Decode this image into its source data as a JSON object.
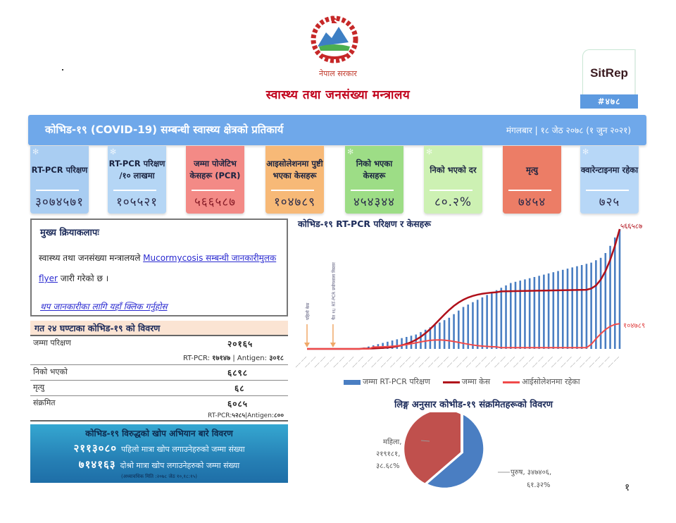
{
  "header": {
    "government": "नेपाल सरकार",
    "ministry": "स्वास्थ्य तथा जनसंख्या मन्त्रालय",
    "sitrep_title": "SitRep",
    "sitrep_number": "#४७८"
  },
  "banner": {
    "title": "कोभिड-१९ (COVID-19) सम्बन्धी स्वास्थ्य क्षेत्रको प्रतिकार्य",
    "date": "मंगलबार | १८ जेठ २०७८ (१ जुन २०२१)"
  },
  "cards": [
    {
      "label": "RT-PCR परिक्षण",
      "value": "३०७४५७१",
      "color": "#a9cdf2"
    },
    {
      "label": "RT-PCR परिक्षण /१० लाखमा",
      "value": "१०५५२१",
      "color": "#b5d6f5"
    },
    {
      "label": "जम्मा पोजेटिभ केसहरू (PCR)",
      "value": "५६६५८७",
      "color": "#f38a86"
    },
    {
      "label": "आइसोलेशनमा पुष्टी भएका केसहरू",
      "value": "१०४७८९",
      "color": "#f7b977"
    },
    {
      "label": "निको भएका केसहरू",
      "value": "४५४३४४",
      "color": "#9ddd86"
    },
    {
      "label": "निको भएको दर",
      "value": "८०.२%",
      "color": "#cdf1b3"
    },
    {
      "label": "मृत्यु",
      "value": "७४५४",
      "color": "#ec7d66"
    },
    {
      "label": "क्वारेन्टाइनमा रहेका",
      "value": "७२५",
      "color": "#b7d7f7"
    }
  ],
  "activities": {
    "title": "मुख्य क्रियाकलापः",
    "text_before": "स्वास्थ्य तथा जनसंख्या मन्त्रालयले ",
    "link_text": "Mucormycosis सम्बन्धी जानकारीमुलक flyer",
    "text_after": " जारी गरेको छ ।",
    "more_link": "थप जानकारीका लागि यहाँ क्लिक गर्नुहोस"
  },
  "last24": {
    "title": "गत २४ घण्टाका कोभिड-१९ को विवरण",
    "rows": [
      {
        "label": "जम्मा परिक्षण",
        "value": "२०१६५",
        "sub_rtpcr_label": "RT-PCR:",
        "sub_rtpcr": "१७१४७",
        "sub_antigen_label": "| Antigen:",
        "sub_antigen": "३०१८"
      },
      {
        "label": "निको भएको",
        "value": "६८९८"
      },
      {
        "label": "मृत्यु",
        "value": "६८"
      },
      {
        "label": "संक्रमित",
        "value": "६०८५",
        "sub_rtpcr_label": "RT-PCR:",
        "sub_rtpcr": "५२८५",
        "sub_antigen_label": "|Antigen:",
        "sub_antigen": "८००"
      }
    ]
  },
  "vaccine": {
    "title": "कोभिड-१९ विरुद्धको खोप अभियान बारे विवरण",
    "first_dose_value": "२११३०८०",
    "first_dose_label": "पहिलो मात्रा खोप लगाउनेहरुको जम्मा संख्या",
    "second_dose_value": "७१४१६३",
    "second_dose_label": "दोश्रो मात्रा खोप लगाउनेहरुको जम्मा संख्या",
    "note": "(अध्यावधिक मिति :२०७८ जेठ १०,१८:१५)"
  },
  "chart_data": [
    {
      "type": "bar+line",
      "title": "कोभिड-१९ RT-PCR परिक्षण र केसहरू",
      "annotations": [
        "पहिलो केस",
        "चैत १६: RT-PCR प्रयोगशाला विस्तार"
      ],
      "end_labels": {
        "total_cases": "५६६५८७",
        "isolation": "१०४७८९"
      },
      "legend": [
        "जम्मा RT-PCR परिक्षण",
        "जम्मा केस",
        "आईसोलेशनमा रहेका"
      ],
      "series": [
        {
          "name": "जम्मा RT-PCR परिक्षण",
          "type": "bar",
          "color": "#4a7ec2",
          "relative_values": [
            0,
            0,
            0,
            0,
            0,
            0,
            0,
            0,
            0,
            0,
            0,
            0,
            0.01,
            0.02,
            0.03,
            0.04,
            0.05,
            0.06,
            0.07,
            0.08,
            0.09,
            0.1,
            0.11,
            0.12,
            0.14,
            0.16,
            0.18,
            0.2,
            0.22,
            0.24,
            0.26,
            0.29,
            0.32,
            0.35,
            0.37,
            0.39,
            0.41,
            0.43,
            0.45,
            0.47,
            0.49,
            0.51,
            0.53,
            0.55,
            0.56,
            0.57,
            0.58,
            0.59,
            0.6,
            0.61,
            0.62,
            0.63,
            0.64,
            0.65,
            0.66,
            0.67,
            0.68,
            0.69,
            0.7,
            0.71,
            0.72,
            0.74,
            0.76,
            0.8,
            0.86,
            0.93,
            1.0
          ]
        },
        {
          "name": "जम्मा केस",
          "type": "line",
          "color": "#b0101a",
          "end_value": 566587
        },
        {
          "name": "आईसोलेशनमा रहेका",
          "type": "line",
          "color": "#f04a4a",
          "end_value": 104789
        }
      ]
    },
    {
      "type": "pie",
      "title": "लिङ्ग अनुसार कोभीड-१९ संक्रमितहरूको विवरण",
      "slices": [
        {
          "label": "पुरुष",
          "value": 347406,
          "value_text": "३४७४०६",
          "percent_text": "६१.३२%",
          "percent": 61.32,
          "color": "#4a7ec2"
        },
        {
          "label": "महिला",
          "value": 219181,
          "value_text": "२१९१८१",
          "percent_text": "३८.६८%",
          "percent": 38.68,
          "color": "#c0504d"
        }
      ]
    }
  ],
  "pie_labels": {
    "female": "महिला,",
    "female_value": "२१९१८१,",
    "female_pct": "३८.६८%",
    "male": "पुरुष, ३४७४०६,",
    "male_pct": "६१.३२%"
  },
  "page_number": "१"
}
